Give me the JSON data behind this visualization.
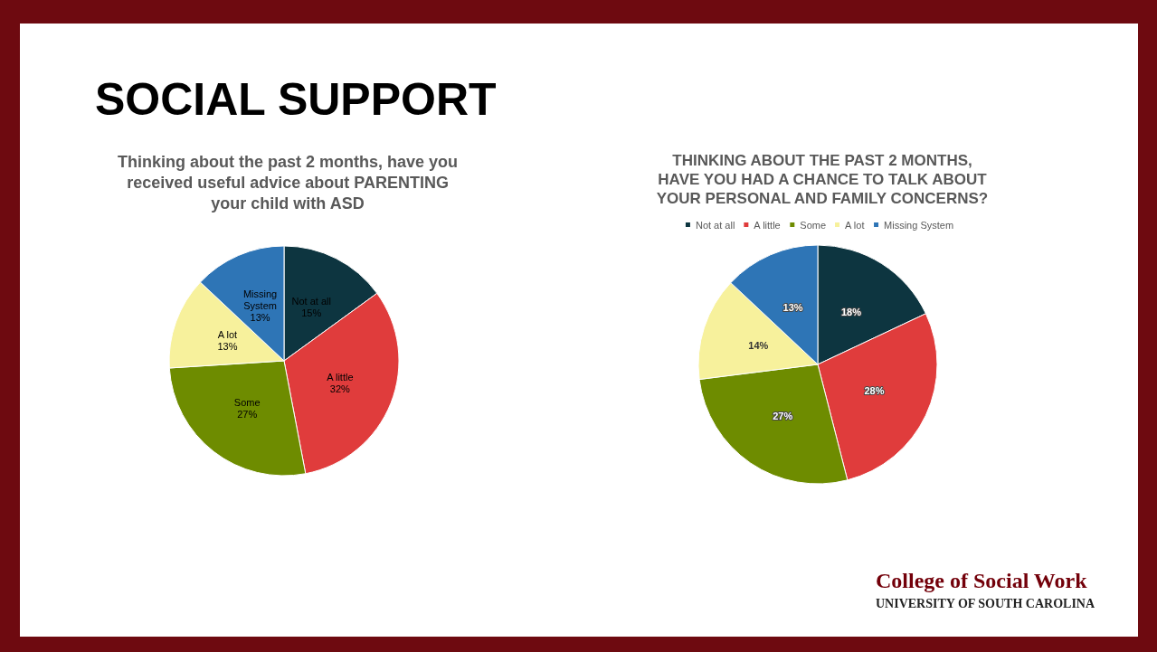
{
  "chart_data": [
    {
      "type": "pie",
      "title": "SOCIAL SUPPORT",
      "subtitle": "Thinking about the past 2 months, have you\nreceived useful advice about PARENTING\nyour child with ASD",
      "categories": [
        "Not at all",
        "A little",
        "Some",
        "A lot",
        "Missing\nSystem"
      ],
      "values": [
        15,
        32,
        27,
        13,
        13
      ],
      "value_labels": [
        "15%",
        "32%",
        "27%",
        "13%",
        "13%"
      ],
      "colors": [
        "#0d3540",
        "#e03c3c",
        "#6e8c00",
        "#f7f19c",
        "#2e75b6"
      ],
      "legend": false
    },
    {
      "type": "pie",
      "title": "THINKING ABOUT THE PAST 2 MONTHS,\nHAVE YOU HAD A CHANCE TO TALK ABOUT\nYOUR PERSONAL AND FAMILY CONCERNS?",
      "categories": [
        "Not at all",
        "A little",
        "Some",
        "A lot",
        "Missing System"
      ],
      "values": [
        18,
        28,
        27,
        14,
        13
      ],
      "value_labels": [
        "18%",
        "28%",
        "27%",
        "14%",
        "13%"
      ],
      "colors": [
        "#0d3540",
        "#e03c3c",
        "#6e8c00",
        "#f7f19c",
        "#2e75b6"
      ],
      "legend": "top",
      "annotations": [
        "College of Social Work",
        "UNIVERSITY OF SOUTH CAROLINA"
      ]
    }
  ]
}
